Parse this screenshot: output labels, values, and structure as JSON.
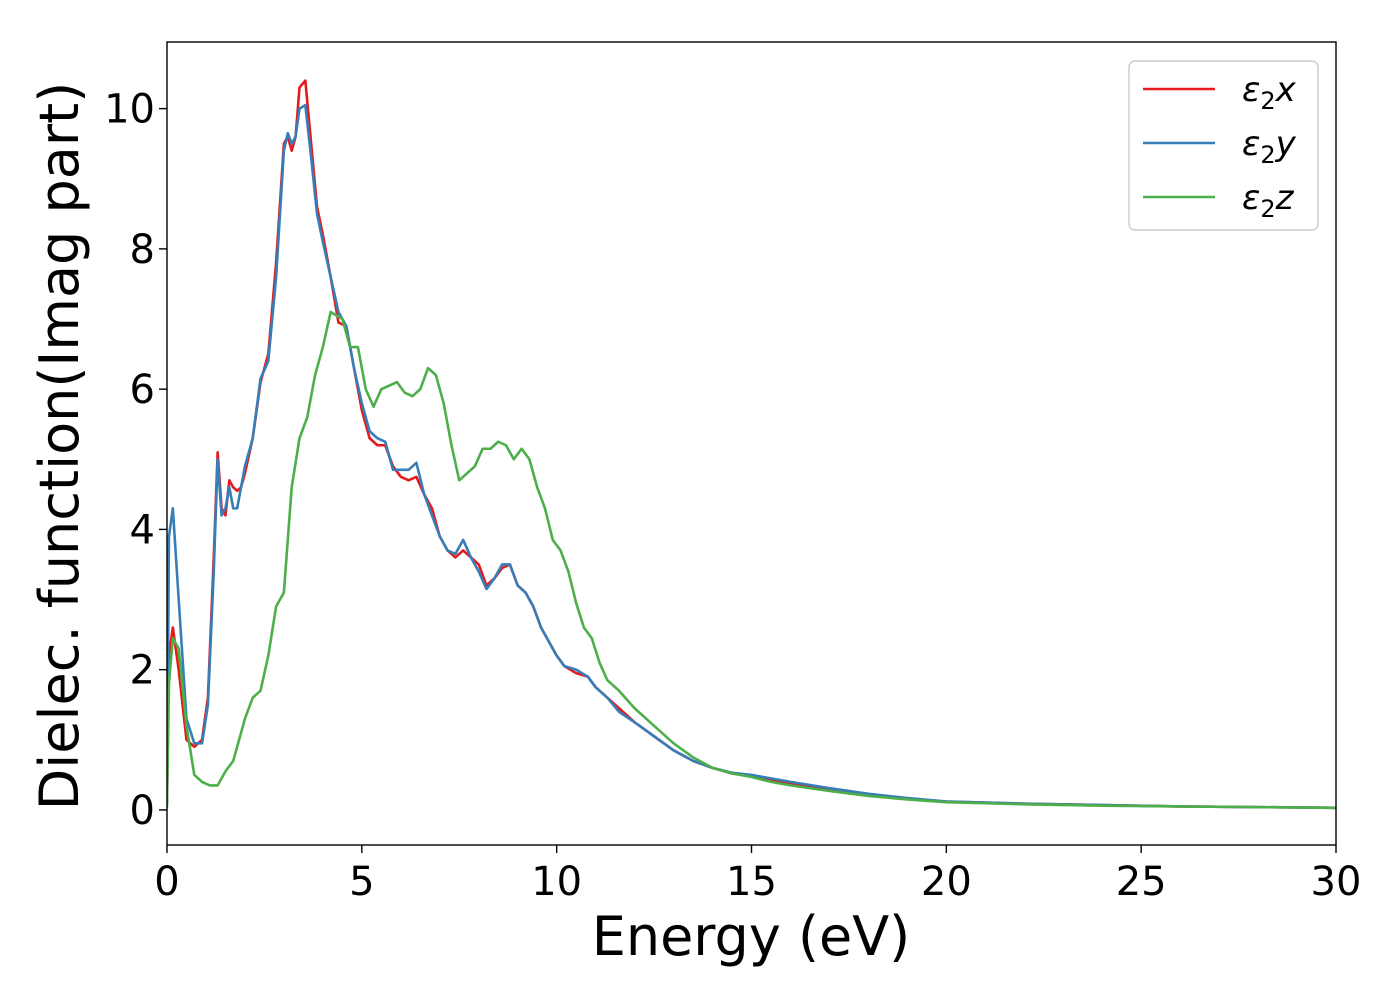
{
  "chart_data": {
    "type": "line",
    "title": "",
    "xlabel": "Energy (eV)",
    "ylabel": "Dielec. function(Imag part)",
    "xlim": [
      0,
      30
    ],
    "ylim": [
      -0.5,
      10.95
    ],
    "x_ticks": [
      0,
      5,
      10,
      15,
      20,
      25,
      30
    ],
    "y_ticks": [
      0,
      2,
      4,
      6,
      8,
      10
    ],
    "x_tick_labels": [
      "0",
      "5",
      "10",
      "15",
      "20",
      "25",
      "30"
    ],
    "y_tick_labels": [
      "0",
      "2",
      "4",
      "6",
      "8",
      "10"
    ],
    "grid": false,
    "legend_position": "top-right",
    "legend": [
      {
        "base": "ε",
        "sub": "2",
        "tail": "x"
      },
      {
        "base": "ε",
        "sub": "2",
        "tail": "y"
      },
      {
        "base": "ε",
        "sub": "2",
        "tail": "z"
      }
    ],
    "series": [
      {
        "color": "#e41a1c",
        "x": [
          0,
          0.05,
          0.15,
          0.3,
          0.5,
          0.7,
          0.9,
          1.05,
          1.2,
          1.3,
          1.4,
          1.5,
          1.6,
          1.7,
          1.8,
          1.9,
          2.0,
          2.2,
          2.4,
          2.6,
          2.8,
          3.0,
          3.1,
          3.2,
          3.3,
          3.4,
          3.55,
          3.7,
          3.85,
          4.0,
          4.2,
          4.4,
          4.6,
          4.8,
          5.0,
          5.2,
          5.4,
          5.6,
          5.8,
          6.0,
          6.2,
          6.4,
          6.6,
          6.8,
          7.0,
          7.2,
          7.4,
          7.6,
          7.8,
          8.0,
          8.2,
          8.4,
          8.6,
          8.8,
          9.0,
          9.2,
          9.4,
          9.6,
          9.8,
          10.0,
          10.2,
          10.5,
          10.8,
          11.0,
          11.3,
          11.6,
          12.0,
          12.5,
          13.0,
          13.5,
          14.0,
          14.5,
          15.0,
          15.5,
          16.0,
          17.0,
          18.0,
          19.0,
          20.0,
          22.0,
          24.0,
          26.0,
          28.0,
          30.0
        ],
        "y": [
          0.1,
          2.2,
          2.6,
          2.0,
          1.0,
          0.9,
          1.0,
          1.6,
          3.6,
          5.1,
          4.3,
          4.2,
          4.7,
          4.6,
          4.55,
          4.6,
          4.8,
          5.3,
          6.1,
          6.5,
          7.8,
          9.5,
          9.6,
          9.4,
          9.6,
          10.3,
          10.4,
          9.5,
          8.6,
          8.2,
          7.6,
          6.95,
          6.9,
          6.3,
          5.7,
          5.3,
          5.2,
          5.2,
          4.9,
          4.75,
          4.7,
          4.75,
          4.5,
          4.3,
          3.9,
          3.7,
          3.6,
          3.7,
          3.6,
          3.5,
          3.2,
          3.3,
          3.45,
          3.5,
          3.2,
          3.1,
          2.9,
          2.6,
          2.4,
          2.2,
          2.05,
          1.95,
          1.9,
          1.75,
          1.6,
          1.45,
          1.25,
          1.05,
          0.85,
          0.7,
          0.6,
          0.52,
          0.48,
          0.43,
          0.38,
          0.3,
          0.22,
          0.16,
          0.12,
          0.09,
          0.07,
          0.05,
          0.04,
          0.03
        ]
      },
      {
        "color": "#377eb8",
        "x": [
          0,
          0.05,
          0.15,
          0.3,
          0.5,
          0.7,
          0.9,
          1.05,
          1.2,
          1.3,
          1.4,
          1.5,
          1.6,
          1.7,
          1.8,
          1.9,
          2.0,
          2.2,
          2.4,
          2.6,
          2.8,
          3.0,
          3.1,
          3.2,
          3.3,
          3.4,
          3.55,
          3.7,
          3.85,
          4.0,
          4.2,
          4.4,
          4.6,
          4.8,
          5.0,
          5.2,
          5.4,
          5.6,
          5.8,
          6.0,
          6.2,
          6.4,
          6.6,
          6.8,
          7.0,
          7.2,
          7.4,
          7.6,
          7.8,
          8.0,
          8.2,
          8.4,
          8.6,
          8.8,
          9.0,
          9.2,
          9.4,
          9.6,
          9.8,
          10.0,
          10.2,
          10.5,
          10.8,
          11.0,
          11.3,
          11.6,
          12.0,
          12.5,
          13.0,
          13.5,
          14.0,
          14.5,
          15.0,
          15.5,
          16.0,
          17.0,
          18.0,
          19.0,
          20.0,
          22.0,
          24.0,
          26.0,
          28.0,
          30.0
        ],
        "y": [
          0.1,
          3.9,
          4.3,
          3.0,
          1.3,
          0.95,
          0.95,
          1.5,
          3.4,
          5.0,
          4.2,
          4.3,
          4.6,
          4.3,
          4.3,
          4.6,
          4.9,
          5.3,
          6.15,
          6.4,
          7.6,
          9.4,
          9.65,
          9.5,
          9.6,
          10.0,
          10.05,
          9.3,
          8.5,
          8.1,
          7.6,
          7.1,
          6.9,
          6.3,
          5.8,
          5.4,
          5.3,
          5.25,
          4.85,
          4.85,
          4.85,
          4.95,
          4.5,
          4.2,
          3.9,
          3.7,
          3.65,
          3.85,
          3.6,
          3.4,
          3.15,
          3.3,
          3.5,
          3.5,
          3.2,
          3.1,
          2.9,
          2.6,
          2.4,
          2.2,
          2.05,
          2.0,
          1.9,
          1.75,
          1.6,
          1.4,
          1.25,
          1.05,
          0.85,
          0.7,
          0.6,
          0.53,
          0.5,
          0.45,
          0.4,
          0.31,
          0.23,
          0.17,
          0.12,
          0.09,
          0.07,
          0.05,
          0.04,
          0.03
        ]
      },
      {
        "color": "#4daf4a",
        "x": [
          0,
          0.05,
          0.15,
          0.3,
          0.5,
          0.7,
          0.9,
          1.1,
          1.3,
          1.5,
          1.7,
          1.9,
          2.0,
          2.2,
          2.4,
          2.6,
          2.8,
          3.0,
          3.2,
          3.4,
          3.6,
          3.8,
          4.0,
          4.2,
          4.35,
          4.5,
          4.7,
          4.9,
          5.1,
          5.3,
          5.5,
          5.7,
          5.9,
          6.1,
          6.3,
          6.5,
          6.7,
          6.9,
          7.1,
          7.3,
          7.5,
          7.7,
          7.9,
          8.1,
          8.3,
          8.5,
          8.7,
          8.9,
          9.1,
          9.3,
          9.5,
          9.7,
          9.9,
          10.1,
          10.3,
          10.5,
          10.7,
          10.9,
          11.1,
          11.3,
          11.6,
          12.0,
          12.5,
          13.0,
          13.5,
          14.0,
          14.5,
          15.0,
          15.5,
          16.0,
          17.0,
          18.0,
          19.0,
          20.0,
          22.0,
          24.0,
          26.0,
          28.0,
          30.0
        ],
        "y": [
          0.05,
          1.8,
          2.45,
          2.3,
          1.2,
          0.5,
          0.4,
          0.35,
          0.35,
          0.55,
          0.7,
          1.1,
          1.3,
          1.6,
          1.7,
          2.2,
          2.9,
          3.1,
          4.6,
          5.3,
          5.6,
          6.2,
          6.6,
          7.1,
          7.05,
          7.0,
          6.6,
          6.6,
          6.0,
          5.75,
          6.0,
          6.05,
          6.1,
          5.95,
          5.9,
          6.0,
          6.3,
          6.2,
          5.8,
          5.2,
          4.7,
          4.8,
          4.9,
          5.15,
          5.15,
          5.25,
          5.2,
          5.0,
          5.15,
          5.0,
          4.6,
          4.3,
          3.85,
          3.7,
          3.4,
          2.95,
          2.6,
          2.45,
          2.1,
          1.85,
          1.7,
          1.45,
          1.2,
          0.95,
          0.75,
          0.6,
          0.52,
          0.47,
          0.4,
          0.35,
          0.27,
          0.2,
          0.15,
          0.11,
          0.08,
          0.06,
          0.05,
          0.04,
          0.03
        ]
      }
    ]
  }
}
